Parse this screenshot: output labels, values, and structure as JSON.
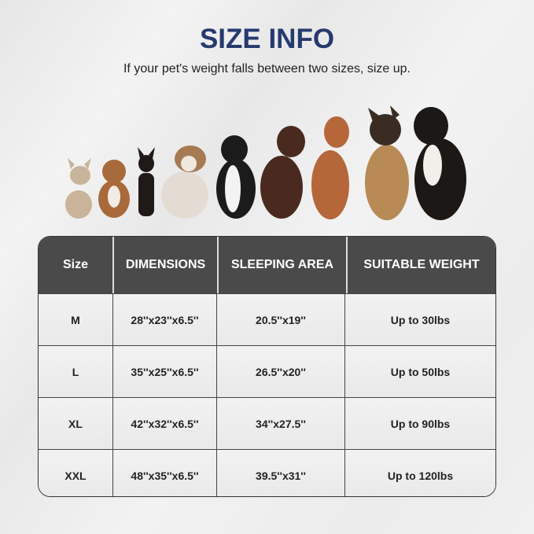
{
  "title": "SIZE INFO",
  "subtitle": "If your pet's weight falls between two sizes, size up.",
  "table": {
    "headers": [
      "Size",
      "DIMENSIONS",
      "SLEEPING AREA",
      "SUITABLE WEIGHT"
    ],
    "rows": [
      [
        "M",
        "28''x23''x6.5''",
        "20.5''x19''",
        "Up to 30lbs"
      ],
      [
        "L",
        "35''x25''x6.5''",
        "26.5''x20''",
        "Up to 50lbs"
      ],
      [
        "XL",
        "42''x32''x6.5''",
        "34''x27.5''",
        "Up to 90lbs"
      ],
      [
        "XXL",
        "48''x35''x6.5''",
        "39.5''x31''",
        "Up to 120lbs"
      ]
    ]
  },
  "colors": {
    "title": "#253a6e",
    "header_bg": "#4a4a4a"
  }
}
